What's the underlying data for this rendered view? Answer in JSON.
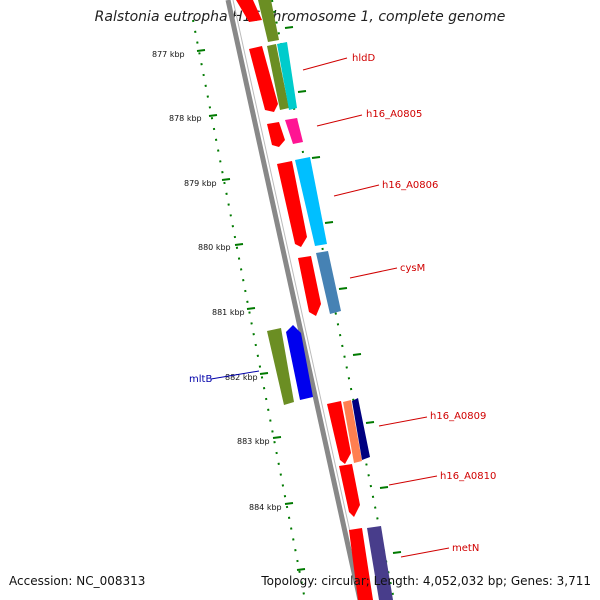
{
  "title": "Ralstonia eutropha H16 chromosome 1, complete genome",
  "accession": "Accession: NC_008313",
  "topology": "Topology: circular; Length: 4,052,032 bp; Genes: 3,711",
  "ticks": [
    "877 kbp",
    "878 kbp",
    "879 kbp",
    "880 kbp",
    "881 kbp",
    "882 kbp",
    "883 kbp",
    "884 kbp"
  ],
  "gene_labels": {
    "hldD": "hldD",
    "h16_A0805": "h16_A0805",
    "h16_A0806": "h16_A0806",
    "cysM": "cysM",
    "mltB": "mltB",
    "h16_A0809": "h16_A0809",
    "h16_A0810": "h16_A0810",
    "metN": "metN"
  },
  "colors": {
    "backbone": "#888888",
    "forward_strand": "#ff0000",
    "tick_green": "#007a00",
    "label_red": "#d00000",
    "label_blue": "#0000aa"
  }
}
